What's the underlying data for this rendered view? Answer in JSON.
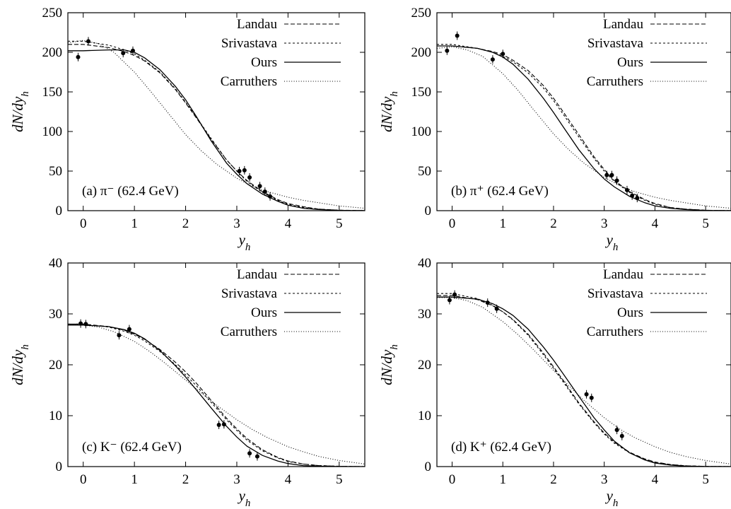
{
  "chart_data": [
    {
      "type": "line",
      "annotation": "(a) π⁻ (62.4 GeV)",
      "xlabel": "y_h",
      "ylabel": "dN/dy_h",
      "xlim": [
        -0.3,
        5.5
      ],
      "ylim": [
        0,
        250
      ],
      "xticks": [
        0,
        1,
        2,
        3,
        4,
        5
      ],
      "yticks": [
        0,
        50,
        100,
        150,
        200,
        250
      ],
      "legend": "top-right",
      "series": [
        {
          "name": "Landau",
          "style": "dashed",
          "x": [
            -0.3,
            0,
            0.5,
            0.8,
            1,
            1.2,
            1.5,
            1.8,
            2,
            2.2,
            2.5,
            2.8,
            3,
            3.2,
            3.5,
            3.8,
            4,
            4.3,
            4.6,
            5,
            5.5
          ],
          "y": [
            210,
            210,
            206,
            201,
            196,
            189,
            174,
            153,
            136,
            118,
            90,
            64,
            50,
            38,
            24,
            14,
            9,
            5,
            2,
            0.6,
            0.1
          ]
        },
        {
          "name": "Srivastava",
          "style": "dotted",
          "x": [
            -0.3,
            0,
            0.5,
            0.8,
            1,
            1.2,
            1.5,
            1.8,
            2,
            2.2,
            2.5,
            2.8,
            3,
            3.2,
            3.5,
            3.8,
            4,
            4.3,
            4.6,
            5,
            5.5
          ],
          "y": [
            214,
            214,
            209,
            203,
            198,
            190,
            175,
            154,
            137,
            119,
            91,
            64,
            50,
            37,
            23,
            13,
            8,
            4,
            2,
            0.5,
            0.1
          ]
        },
        {
          "name": "Ours",
          "style": "solid",
          "x": [
            -0.3,
            0,
            0.5,
            0.8,
            1,
            1.2,
            1.5,
            1.8,
            2,
            2.2,
            2.5,
            2.8,
            3,
            3.2,
            3.5,
            3.8,
            4,
            4.3,
            4.6,
            5,
            5.5
          ],
          "y": [
            202,
            202,
            203,
            203,
            200,
            193,
            178,
            157,
            140,
            120,
            88,
            60,
            46,
            34,
            21,
            12,
            7,
            3,
            1.5,
            0.4,
            0.1
          ]
        },
        {
          "name": "Carruthers",
          "style": "fine-dotted",
          "x": [
            -0.3,
            0,
            0.3,
            0.6,
            1,
            1.3,
            1.6,
            2,
            2.3,
            2.6,
            3,
            3.3,
            3.6,
            4,
            4.3,
            4.6,
            5,
            5.5
          ],
          "y": [
            212,
            215,
            211,
            200,
            175,
            152,
            128,
            96,
            76,
            59,
            41,
            31,
            24,
            17,
            13,
            10,
            6,
            3
          ]
        }
      ],
      "points": {
        "x": [
          -0.1,
          0.1,
          0.78,
          0.97,
          3.05,
          3.15,
          3.25,
          3.45,
          3.55,
          3.65
        ],
        "y": [
          194,
          214,
          199,
          202,
          50,
          51,
          42,
          31,
          24,
          18
        ]
      }
    },
    {
      "type": "line",
      "annotation": "(b) π⁺ (62.4 GeV)",
      "xlabel": "y_h",
      "ylabel": "dN/dy_h",
      "xlim": [
        -0.3,
        5.5
      ],
      "ylim": [
        0,
        250
      ],
      "xticks": [
        0,
        1,
        2,
        3,
        4,
        5
      ],
      "yticks": [
        0,
        50,
        100,
        150,
        200,
        250
      ],
      "legend": "top-right",
      "series": [
        {
          "name": "Landau",
          "style": "dashed",
          "x": [
            -0.3,
            0,
            0.5,
            0.8,
            1,
            1.2,
            1.5,
            1.8,
            2,
            2.2,
            2.5,
            2.8,
            3,
            3.2,
            3.5,
            3.8,
            4,
            4.3,
            4.6,
            5,
            5.5
          ],
          "y": [
            208,
            208,
            205,
            201,
            197,
            190,
            177,
            158,
            142,
            124,
            96,
            68,
            52,
            38,
            24,
            14,
            9,
            4,
            2,
            0.5,
            0.1
          ]
        },
        {
          "name": "Srivastava",
          "style": "dotted",
          "x": [
            -0.3,
            0,
            0.5,
            0.8,
            1,
            1.2,
            1.5,
            1.8,
            2,
            2.2,
            2.5,
            2.8,
            3,
            3.2,
            3.5,
            3.8,
            4,
            4.3,
            4.6,
            5,
            5.5
          ],
          "y": [
            210,
            210,
            205,
            200,
            195,
            188,
            174,
            155,
            139,
            121,
            93,
            66,
            50,
            37,
            23,
            13,
            8,
            4,
            2,
            0.5,
            0.1
          ]
        },
        {
          "name": "Ours",
          "style": "solid",
          "x": [
            -0.3,
            0,
            0.5,
            0.8,
            1,
            1.2,
            1.5,
            1.8,
            2,
            2.2,
            2.5,
            2.8,
            3,
            3.2,
            3.5,
            3.8,
            4,
            4.3,
            4.6,
            5,
            5.5
          ],
          "y": [
            208,
            208,
            205,
            200,
            194,
            185,
            166,
            142,
            124,
            105,
            77,
            53,
            40,
            30,
            18,
            10,
            6,
            3,
            1.5,
            0.4,
            0.1
          ]
        },
        {
          "name": "Carruthers",
          "style": "fine-dotted",
          "x": [
            -0.3,
            0,
            0.3,
            0.6,
            1,
            1.3,
            1.6,
            2,
            2.3,
            2.6,
            3,
            3.3,
            3.6,
            4,
            4.3,
            4.6,
            5,
            5.5
          ],
          "y": [
            205,
            207,
            203,
            195,
            173,
            152,
            128,
            97,
            77,
            60,
            42,
            32,
            24,
            17,
            13,
            10,
            6,
            3
          ]
        }
      ],
      "points": {
        "x": [
          -0.1,
          0.1,
          0.8,
          1.0,
          3.05,
          3.15,
          3.25,
          3.45,
          3.55,
          3.65
        ],
        "y": [
          202,
          221,
          191,
          198,
          45,
          45,
          38,
          26,
          19,
          16
        ]
      }
    },
    {
      "type": "line",
      "annotation": "(c) K⁻ (62.4 GeV)",
      "xlabel": "y_h",
      "ylabel": "dN/dy_h",
      "xlim": [
        -0.3,
        5.5
      ],
      "ylim": [
        0,
        40
      ],
      "xticks": [
        0,
        1,
        2,
        3,
        4,
        5
      ],
      "yticks": [
        0,
        10,
        20,
        30,
        40
      ],
      "legend": "top-right",
      "series": [
        {
          "name": "Landau",
          "style": "dashed",
          "x": [
            -0.3,
            0,
            0.5,
            0.8,
            1,
            1.2,
            1.5,
            1.8,
            2,
            2.2,
            2.5,
            2.8,
            3,
            3.2,
            3.5,
            3.8,
            4,
            4.3,
            4.6,
            5,
            5.5
          ],
          "y": [
            28,
            28,
            27.5,
            26.8,
            26,
            25,
            23,
            20.5,
            18.6,
            16.5,
            13,
            9.5,
            7.4,
            5.5,
            3.3,
            1.8,
            1.1,
            0.5,
            0.2,
            0.05,
            0
          ]
        },
        {
          "name": "Srivastava",
          "style": "dotted",
          "x": [
            -0.3,
            0,
            0.5,
            0.8,
            1,
            1.2,
            1.5,
            1.8,
            2,
            2.2,
            2.5,
            2.8,
            3,
            3.2,
            3.5,
            3.8,
            4,
            4.3,
            4.6,
            5,
            5.5
          ],
          "y": [
            28,
            28,
            27.4,
            26.6,
            25.8,
            24.7,
            22.6,
            20,
            18,
            16,
            12.6,
            9.2,
            7.1,
            5.2,
            3.1,
            1.7,
            1,
            0.5,
            0.2,
            0.05,
            0
          ]
        },
        {
          "name": "Ours",
          "style": "solid",
          "x": [
            -0.3,
            0,
            0.5,
            0.8,
            1,
            1.2,
            1.5,
            1.8,
            2,
            2.2,
            2.5,
            2.8,
            3,
            3.2,
            3.5,
            3.8,
            4,
            4.3,
            4.6,
            5,
            5.5
          ],
          "y": [
            27.8,
            27.8,
            27.5,
            26.9,
            26.2,
            25.1,
            22.8,
            19.8,
            17.6,
            15.2,
            11.5,
            7.9,
            5.8,
            4,
            2.2,
            1.1,
            0.6,
            0.2,
            0.08,
            0.02,
            0
          ]
        },
        {
          "name": "Carruthers",
          "style": "fine-dotted",
          "x": [
            -0.3,
            0,
            0.3,
            0.6,
            1,
            1.3,
            1.6,
            2,
            2.3,
            2.6,
            3,
            3.3,
            3.6,
            4,
            4.3,
            4.6,
            5,
            5.5
          ],
          "y": [
            27.8,
            27.8,
            27.4,
            26.5,
            24.6,
            22.6,
            20.3,
            17,
            14.5,
            12.1,
            9.2,
            7.3,
            5.7,
            3.9,
            2.9,
            2,
            1.2,
            0.5
          ]
        }
      ],
      "points": {
        "x": [
          -0.05,
          0.05,
          0.7,
          0.9,
          2.65,
          2.75,
          3.25,
          3.4
        ],
        "y": [
          28.1,
          28,
          25.8,
          27,
          8.2,
          8.3,
          2.6,
          2
        ]
      }
    },
    {
      "type": "line",
      "annotation": "(d) K⁺ (62.4 GeV)",
      "xlabel": "y_h",
      "ylabel": "dN/dy_h",
      "xlim": [
        -0.3,
        5.5
      ],
      "ylim": [
        0,
        40
      ],
      "xticks": [
        0,
        1,
        2,
        3,
        4,
        5
      ],
      "yticks": [
        0,
        10,
        20,
        30,
        40
      ],
      "legend": "top-right",
      "series": [
        {
          "name": "Landau",
          "style": "dashed",
          "x": [
            -0.3,
            0,
            0.5,
            0.8,
            1,
            1.2,
            1.5,
            1.8,
            2,
            2.2,
            2.5,
            2.8,
            3,
            3.2,
            3.5,
            3.8,
            4,
            4.3,
            4.6,
            5,
            5.5
          ],
          "y": [
            33.6,
            33.6,
            32.8,
            31.6,
            30.4,
            28.9,
            26,
            22.3,
            19.6,
            16.8,
            12.5,
            8.8,
            6.6,
            4.8,
            2.8,
            1.5,
            0.9,
            0.4,
            0.15,
            0.04,
            0
          ]
        },
        {
          "name": "Srivastava",
          "style": "dotted",
          "x": [
            -0.3,
            0,
            0.5,
            0.8,
            1,
            1.2,
            1.5,
            1.8,
            2,
            2.2,
            2.5,
            2.8,
            3,
            3.2,
            3.5,
            3.8,
            4,
            4.3,
            4.6,
            5,
            5.5
          ],
          "y": [
            34,
            34,
            33,
            31.7,
            30.4,
            28.8,
            25.8,
            22,
            19.3,
            16.5,
            12.3,
            8.6,
            6.4,
            4.6,
            2.7,
            1.4,
            0.8,
            0.4,
            0.15,
            0.04,
            0
          ]
        },
        {
          "name": "Ours",
          "style": "solid",
          "x": [
            -0.3,
            0,
            0.5,
            0.8,
            1,
            1.2,
            1.5,
            1.8,
            2,
            2.2,
            2.5,
            2.8,
            3,
            3.2,
            3.5,
            3.8,
            4,
            4.3,
            4.6,
            5,
            5.5
          ],
          "y": [
            33.3,
            33.3,
            32.9,
            32,
            31,
            29.7,
            27,
            23.5,
            20.9,
            18.1,
            13.8,
            9.6,
            7.2,
            5,
            2.7,
            1.3,
            0.7,
            0.3,
            0.1,
            0.02,
            0
          ]
        },
        {
          "name": "Carruthers",
          "style": "fine-dotted",
          "x": [
            -0.3,
            0,
            0.3,
            0.6,
            1,
            1.3,
            1.6,
            2,
            2.3,
            2.6,
            3,
            3.3,
            3.6,
            4,
            4.3,
            4.6,
            5,
            5.5
          ],
          "y": [
            33.2,
            33.2,
            32.6,
            31.3,
            28.5,
            25.9,
            23,
            18.9,
            15.9,
            13,
            9.6,
            7.4,
            5.7,
            3.9,
            2.8,
            2,
            1.2,
            0.5
          ]
        }
      ],
      "points": {
        "x": [
          -0.05,
          0.05,
          0.7,
          0.88,
          2.65,
          2.75,
          3.25,
          3.35
        ],
        "y": [
          32.7,
          33.8,
          32.2,
          31,
          14.2,
          13.5,
          7.2,
          6
        ]
      }
    }
  ]
}
